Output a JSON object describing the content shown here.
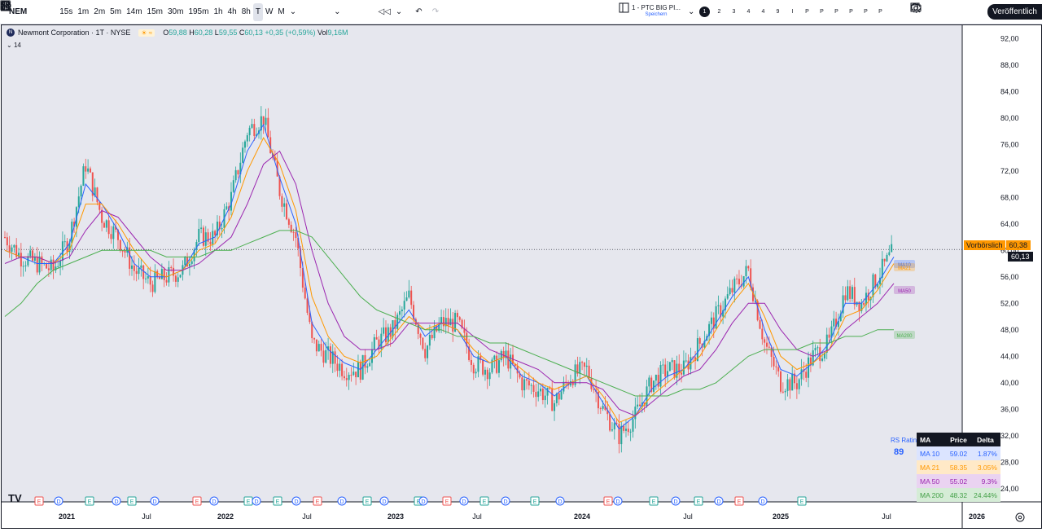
{
  "toolbar": {
    "symbol": "NEM",
    "intervals": [
      "15s",
      "1m",
      "2m",
      "5m",
      "14m",
      "15m",
      "30m",
      "195m",
      "1h",
      "4h",
      "8h",
      "T",
      "W",
      "M"
    ],
    "selected_interval": "T",
    "layout_name": "1 - PTC BIG PI...",
    "layout_sub": "Speichern",
    "tabs": [
      "1",
      "2",
      "3",
      "4",
      "4",
      "9",
      "I",
      "P",
      "P",
      "P",
      "P",
      "P",
      "P"
    ],
    "publish_label": "Veröffentlich"
  },
  "legend": {
    "title": "Newmont Corporation · 1T · NYSE",
    "open_label": "O",
    "open": "59,88",
    "high_label": "H",
    "high": "60,28",
    "low_label": "L",
    "low": "59,55",
    "close_label": "C",
    "close": "60,13",
    "change": "+0,35 (+0,59%)",
    "vol_label": "Vol",
    "vol": "9,16M",
    "sub": "14"
  },
  "price_labels": {
    "premarket_label": "Vorbörslich",
    "premarket_value": "60,38",
    "last_value": "60,13"
  },
  "ma_labels": [
    "MA10",
    "MA21",
    "MA50",
    "MA200"
  ],
  "rs": {
    "label": "RS Rating",
    "value": "89"
  },
  "ma_table": {
    "headers": [
      "MA",
      "Price",
      "Delta"
    ],
    "rows": [
      {
        "ma": "MA 10",
        "price": "59.02",
        "delta": "1.87%",
        "color": "#2962ff",
        "bg": "#dbe4ff"
      },
      {
        "ma": "MA 21",
        "price": "58.35",
        "delta": "3.05%",
        "color": "#ff9800",
        "bg": "#ffe9c7"
      },
      {
        "ma": "MA 50",
        "price": "55.02",
        "delta": "9.3%",
        "color": "#9c27b0",
        "bg": "#ead3f1"
      },
      {
        "ma": "MA 200",
        "price": "48.32",
        "delta": "24.44%",
        "color": "#43a047",
        "bg": "#d5ecd6"
      }
    ]
  },
  "colors": {
    "up": "#26a69a",
    "down": "#ef5350",
    "ma10": "#2962ff",
    "ma21": "#ff9800",
    "ma50": "#9c27b0",
    "ma200": "#4caf50",
    "bg": "#e6e7ee"
  },
  "chart_data": {
    "type": "candlestick",
    "y_ticks": [
      "92,00",
      "88,00",
      "84,00",
      "80,00",
      "76,00",
      "72,00",
      "68,00",
      "64,00",
      "60,00",
      "56,00",
      "52,00",
      "48,00",
      "44,00",
      "40,00",
      "36,00",
      "32,00",
      "28,00",
      "24,00"
    ],
    "ylim": [
      22,
      94
    ],
    "x_ticks": [
      "2021",
      "Jul",
      "2022",
      "Jul",
      "2023",
      "Jul",
      "2024",
      "Jul",
      "2025",
      "Jul",
      "2026"
    ],
    "price_path": [
      {
        "t": "2020-12",
        "close": 62
      },
      {
        "t": "2021-01",
        "close": 59
      },
      {
        "t": "2021-02",
        "close": 58
      },
      {
        "t": "2021-03",
        "close": 57
      },
      {
        "t": "2021-04",
        "close": 62
      },
      {
        "t": "2021-05",
        "close": 73
      },
      {
        "t": "2021-06",
        "close": 65
      },
      {
        "t": "2021-07",
        "close": 62
      },
      {
        "t": "2021-08",
        "close": 57
      },
      {
        "t": "2021-09",
        "close": 55
      },
      {
        "t": "2021-10",
        "close": 56
      },
      {
        "t": "2021-11",
        "close": 57
      },
      {
        "t": "2021-12",
        "close": 62
      },
      {
        "t": "2022-01",
        "close": 62
      },
      {
        "t": "2022-02",
        "close": 68
      },
      {
        "t": "2022-03",
        "close": 78
      },
      {
        "t": "2022-04",
        "close": 80
      },
      {
        "t": "2022-05",
        "close": 69
      },
      {
        "t": "2022-06",
        "close": 62
      },
      {
        "t": "2022-07",
        "close": 46
      },
      {
        "t": "2022-08",
        "close": 44
      },
      {
        "t": "2022-09",
        "close": 42
      },
      {
        "t": "2022-10",
        "close": 42
      },
      {
        "t": "2022-11",
        "close": 46
      },
      {
        "t": "2022-12",
        "close": 48
      },
      {
        "t": "2023-01",
        "close": 53
      },
      {
        "t": "2023-02",
        "close": 45
      },
      {
        "t": "2023-03",
        "close": 49
      },
      {
        "t": "2023-04",
        "close": 49
      },
      {
        "t": "2023-05",
        "close": 43
      },
      {
        "t": "2023-06",
        "close": 42
      },
      {
        "t": "2023-07",
        "close": 44
      },
      {
        "t": "2023-08",
        "close": 40
      },
      {
        "t": "2023-09",
        "close": 39
      },
      {
        "t": "2023-10",
        "close": 37
      },
      {
        "t": "2023-11",
        "close": 41
      },
      {
        "t": "2023-12",
        "close": 42
      },
      {
        "t": "2024-01",
        "close": 36
      },
      {
        "t": "2024-02",
        "close": 32
      },
      {
        "t": "2024-03",
        "close": 35
      },
      {
        "t": "2024-04",
        "close": 40
      },
      {
        "t": "2024-05",
        "close": 42
      },
      {
        "t": "2024-06",
        "close": 42
      },
      {
        "t": "2024-07",
        "close": 46
      },
      {
        "t": "2024-08",
        "close": 50
      },
      {
        "t": "2024-09",
        "close": 54
      },
      {
        "t": "2024-10",
        "close": 57
      },
      {
        "t": "2024-11",
        "close": 46
      },
      {
        "t": "2024-12",
        "close": 40
      },
      {
        "t": "2025-01",
        "close": 40
      },
      {
        "t": "2025-02",
        "close": 44
      },
      {
        "t": "2025-03",
        "close": 46
      },
      {
        "t": "2025-04",
        "close": 54
      },
      {
        "t": "2025-05",
        "close": 52
      },
      {
        "t": "2025-06",
        "close": 56
      },
      {
        "t": "2025-07",
        "close": 60
      }
    ],
    "ma": {
      "ma10": [
        60,
        59,
        58,
        58,
        61,
        70,
        67,
        63,
        58,
        56,
        56,
        57,
        61,
        62,
        67,
        75,
        79,
        71,
        64,
        49,
        45,
        43,
        42,
        45,
        48,
        51,
        47,
        49,
        48,
        44,
        43,
        44,
        41,
        40,
        38,
        40,
        41,
        37,
        33,
        35,
        39,
        41,
        42,
        45,
        49,
        53,
        56,
        48,
        42,
        41,
        43,
        46,
        52,
        52,
        55,
        59
      ],
      "ma21": [
        60,
        59,
        59,
        58,
        60,
        67,
        67,
        64,
        60,
        57,
        56,
        57,
        60,
        61,
        65,
        72,
        77,
        73,
        66,
        53,
        47,
        44,
        43,
        44,
        47,
        50,
        48,
        49,
        48,
        45,
        43,
        44,
        42,
        40,
        39,
        40,
        41,
        38,
        34,
        35,
        38,
        40,
        42,
        44,
        48,
        52,
        55,
        50,
        44,
        42,
        43,
        45,
        50,
        51,
        54,
        58
      ],
      "ma50": [
        58,
        59,
        59,
        58,
        59,
        63,
        66,
        65,
        62,
        59,
        57,
        57,
        58,
        60,
        62,
        67,
        73,
        75,
        70,
        60,
        52,
        47,
        45,
        45,
        46,
        49,
        49,
        49,
        49,
        47,
        45,
        44,
        43,
        42,
        40,
        40,
        40,
        39,
        36,
        35,
        37,
        39,
        41,
        42,
        45,
        49,
        52,
        52,
        48,
        45,
        44,
        45,
        48,
        50,
        52,
        55
      ],
      "ma200": [
        50,
        52,
        55,
        57,
        58,
        59,
        60,
        60,
        60,
        60,
        59,
        59,
        59,
        60,
        60,
        61,
        62,
        63,
        63,
        62,
        59,
        56,
        53,
        51,
        50,
        49,
        48,
        48,
        47,
        47,
        46,
        46,
        45,
        44,
        43,
        42,
        41,
        40,
        39,
        38,
        38,
        38,
        39,
        39,
        40,
        42,
        44,
        45,
        45,
        45,
        46,
        46,
        47,
        47,
        48,
        48
      ]
    },
    "events": [
      "E",
      "D",
      "E",
      "D",
      "E",
      "D",
      "E",
      "D",
      "E",
      "D",
      "E",
      "D",
      "E",
      "D",
      "E",
      "D",
      "E",
      "D",
      "E",
      "D",
      "E",
      "D",
      "E",
      "D",
      "E",
      "D",
      "E",
      "D",
      "E",
      "D",
      "E",
      "D",
      "E"
    ]
  }
}
